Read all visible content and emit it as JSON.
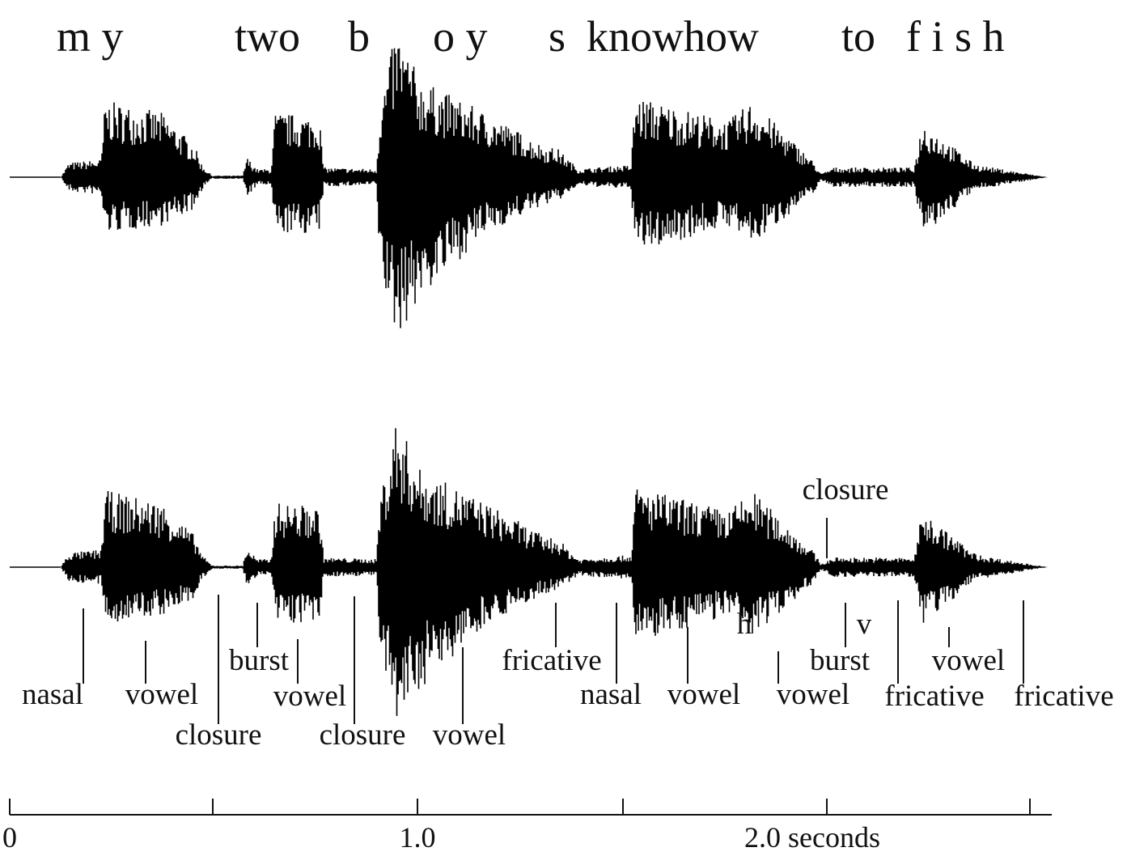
{
  "sentence": {
    "words": [
      "m y",
      "two",
      "b",
      "o y",
      "s",
      "knowhow",
      "to",
      "f i s h"
    ]
  },
  "segments": [
    "nasal",
    "vowel",
    "closure",
    "burst",
    "vowel",
    "closure",
    "vowel",
    "fricative",
    "nasal",
    "vowel",
    "h",
    "vowel",
    "closure",
    "v",
    "burst",
    "fricative",
    "vowel",
    "fricative"
  ],
  "axis": {
    "labels": [
      "0",
      "1.0",
      "2.0 seconds"
    ]
  }
}
